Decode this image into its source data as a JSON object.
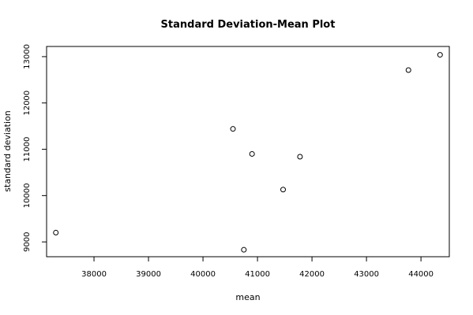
{
  "chart_data": {
    "type": "scatter",
    "title": "Standard Deviation-Mean Plot",
    "xlabel": "mean",
    "ylabel": "standard deviation",
    "xlim": [
      37130,
      44520
    ],
    "ylim": [
      8680,
      13220
    ],
    "x_ticks": [
      38000,
      39000,
      40000,
      41000,
      42000,
      43000,
      44000
    ],
    "y_ticks": [
      9000,
      10000,
      11000,
      12000,
      13000
    ],
    "grid": false,
    "points": [
      {
        "x": 37300,
        "y": 9200
      },
      {
        "x": 40550,
        "y": 11440
      },
      {
        "x": 40750,
        "y": 8830
      },
      {
        "x": 40900,
        "y": 10900
      },
      {
        "x": 41470,
        "y": 10130
      },
      {
        "x": 41780,
        "y": 10840
      },
      {
        "x": 43770,
        "y": 12710
      },
      {
        "x": 44350,
        "y": 13040
      }
    ]
  }
}
